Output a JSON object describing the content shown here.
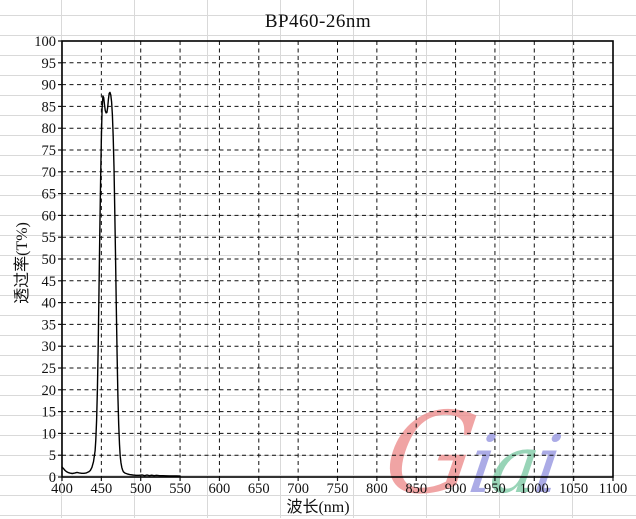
{
  "window": {
    "background": "#ffffff"
  },
  "spreadsheet": {
    "row_line_color": "#d9d9d9",
    "col_line_color": "#d9d9d9"
  },
  "chart_data": {
    "type": "line",
    "title": "BP460-26nm",
    "xlabel": "波长(nm)",
    "ylabel": "透过率(T%)",
    "xlim": [
      400,
      1100
    ],
    "x_tick_step": 50,
    "ylim": [
      0,
      100
    ],
    "y_tick_step": 5,
    "grid": "dashed black gridlines at every x and y tick",
    "legend": "none",
    "plot_border_color": "#000000",
    "series": [
      {
        "name": "transmittance",
        "color": "#000000",
        "points": [
          [
            400,
            2.3
          ],
          [
            402,
            1.9
          ],
          [
            404,
            1.5
          ],
          [
            406,
            1.2
          ],
          [
            408,
            1.0
          ],
          [
            410,
            0.9
          ],
          [
            413,
            0.8
          ],
          [
            416,
            0.9
          ],
          [
            419,
            1.05
          ],
          [
            422,
            0.95
          ],
          [
            425,
            0.85
          ],
          [
            428,
            0.85
          ],
          [
            431,
            0.95
          ],
          [
            434,
            1.2
          ],
          [
            436,
            1.5
          ],
          [
            438,
            2.2
          ],
          [
            440,
            3.5
          ],
          [
            442,
            6.0
          ],
          [
            443,
            8.5
          ],
          [
            444,
            13
          ],
          [
            445,
            20
          ],
          [
            446,
            30
          ],
          [
            447,
            43
          ],
          [
            448,
            56
          ],
          [
            449,
            68
          ],
          [
            450,
            78
          ],
          [
            451,
            84.5
          ],
          [
            452,
            87.4
          ],
          [
            453,
            87.0
          ],
          [
            454,
            85.4
          ],
          [
            455,
            84.0
          ],
          [
            456,
            83.5
          ],
          [
            457,
            83.6
          ],
          [
            458,
            84.8
          ],
          [
            459,
            86.6
          ],
          [
            460,
            88.0
          ],
          [
            461,
            88.2
          ],
          [
            462,
            87.6
          ],
          [
            463,
            86.0
          ],
          [
            464,
            83.0
          ],
          [
            465,
            78
          ],
          [
            466,
            71
          ],
          [
            467,
            62
          ],
          [
            468,
            51
          ],
          [
            469,
            39
          ],
          [
            470,
            28
          ],
          [
            471,
            18.5
          ],
          [
            472,
            12
          ],
          [
            473,
            7.5
          ],
          [
            474,
            4.8
          ],
          [
            475,
            3.2
          ],
          [
            476,
            2.2
          ],
          [
            477,
            1.6
          ],
          [
            478,
            1.2
          ],
          [
            480,
            0.9
          ],
          [
            483,
            0.7
          ],
          [
            486,
            0.55
          ],
          [
            490,
            0.45
          ],
          [
            494,
            0.4
          ],
          [
            498,
            0.4
          ],
          [
            502,
            0.45
          ],
          [
            505,
            0.3
          ],
          [
            508,
            0.45
          ],
          [
            511,
            0.3
          ],
          [
            514,
            0.42
          ],
          [
            517,
            0.3
          ],
          [
            520,
            0.4
          ],
          [
            524,
            0.3
          ],
          [
            528,
            0.3
          ],
          [
            532,
            0.28
          ],
          [
            536,
            0.25
          ],
          [
            540,
            0.25
          ],
          [
            545,
            0.22
          ],
          [
            550,
            0.2
          ]
        ]
      }
    ]
  },
  "watermark": {
    "text": "Giai",
    "letters": [
      {
        "char": "G",
        "color": "#ec8b8b",
        "size": 112
      },
      {
        "char": "i",
        "color": "#9494e0",
        "size": 80
      },
      {
        "char": "a",
        "color": "#7cc9a3",
        "size": 80
      },
      {
        "char": "i",
        "color": "#9494e0",
        "size": 80
      }
    ]
  }
}
